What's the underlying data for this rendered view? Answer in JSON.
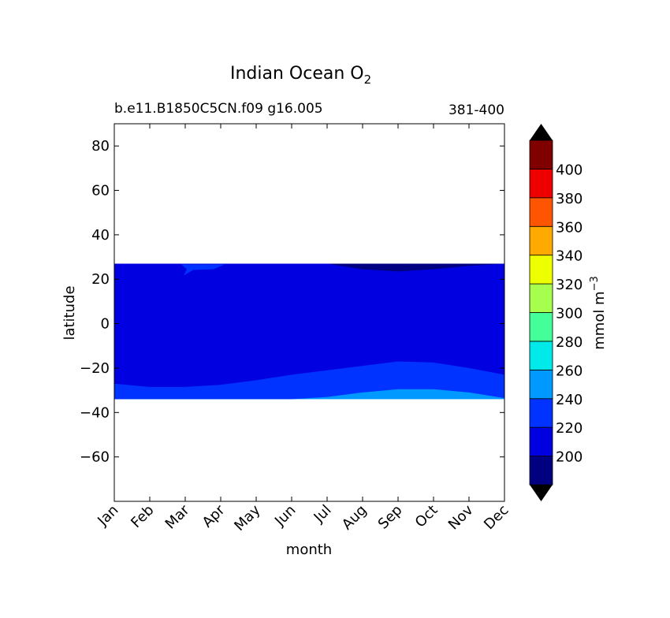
{
  "chart_data": {
    "type": "filled-contour",
    "title": "Indian Ocean O",
    "title_subscript": "2",
    "subtitle_left": "b.e11.B1850C5CN.f09 g16.005",
    "subtitle_right": "381-400",
    "xlabel": "month",
    "ylabel": "latitude",
    "x_categories": [
      "Jan",
      "Feb",
      "Mar",
      "Apr",
      "May",
      "Jun",
      "Jul",
      "Aug",
      "Sep",
      "Oct",
      "Nov",
      "Dec"
    ],
    "ylim": [
      -80,
      90
    ],
    "y_ticks": [
      80,
      60,
      40,
      20,
      0,
      -20,
      -40,
      -60
    ],
    "y_tick_labels": [
      "80",
      "60",
      "40",
      "20",
      "0",
      "−20",
      "−40",
      "−60"
    ],
    "data_lat_range": [
      -34,
      27
    ],
    "regions": [
      {
        "name": "main",
        "range": "200-220",
        "color": "#0000e0",
        "lower_boundary_lat": [
          -27,
          -28.5,
          -28.5,
          -27.5,
          -25.5,
          -23,
          -21,
          -19,
          -17,
          -17.5,
          -20,
          -23
        ]
      },
      {
        "name": "south-band",
        "range": "220-240",
        "color": "#0033ff",
        "lower_boundary_lat": [
          -34,
          -34,
          -34,
          -34,
          -34,
          -34,
          -33,
          -31,
          -29.5,
          -29.5,
          -31,
          -33.5
        ]
      },
      {
        "name": "south-edge",
        "range": "240-260",
        "color": "#0099ff"
      },
      {
        "name": "north-low",
        "range": "180-200",
        "color": "#000080",
        "lower_boundary_lat": [
          27,
          27,
          27,
          27,
          27,
          27,
          27,
          24.5,
          23.5,
          24.5,
          26,
          27
        ]
      },
      {
        "name": "north-spot",
        "range": "220-240",
        "color": "#0033ff"
      }
    ],
    "colorbar": {
      "label": "mmol m",
      "label_superscript": "−3",
      "levels": [
        {
          "range": "180-200",
          "color": "#000080"
        },
        {
          "range": "200-220",
          "color": "#0000e0"
        },
        {
          "range": "220-240",
          "color": "#0033ff"
        },
        {
          "range": "240-260",
          "color": "#0099ff"
        },
        {
          "range": "260-280",
          "color": "#00eaea"
        },
        {
          "range": "280-300",
          "color": "#44ff99"
        },
        {
          "range": "300-320",
          "color": "#a6ff4d"
        },
        {
          "range": "320-340",
          "color": "#eeff00"
        },
        {
          "range": "340-360",
          "color": "#ffaa00"
        },
        {
          "range": "360-380",
          "color": "#ff5500"
        },
        {
          "range": "380-400",
          "color": "#ee0000"
        },
        {
          "range": "400-420",
          "color": "#800000"
        }
      ],
      "tick_labels": [
        "200",
        "220",
        "240",
        "260",
        "280",
        "300",
        "320",
        "340",
        "360",
        "380",
        "400"
      ],
      "extend_color": "#000000"
    }
  }
}
